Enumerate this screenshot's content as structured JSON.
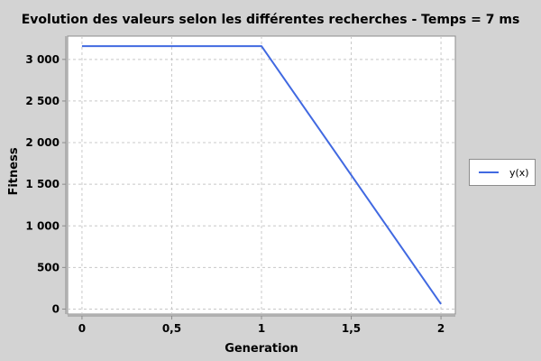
{
  "chart_data": {
    "type": "line",
    "title": "Evolution des valeurs selon les différentes recherches - Temps = 7 ms",
    "xlabel": "Generation",
    "ylabel": "Fitness",
    "xlim": [
      -0.08,
      2.08
    ],
    "ylim": [
      -60,
      3280
    ],
    "x_ticks": [
      {
        "value": 0,
        "label": "0"
      },
      {
        "value": 0.5,
        "label": "0,5"
      },
      {
        "value": 1,
        "label": "1"
      },
      {
        "value": 1.5,
        "label": "1,5"
      },
      {
        "value": 2,
        "label": "2"
      }
    ],
    "y_ticks": [
      {
        "value": 0,
        "label": "0"
      },
      {
        "value": 500,
        "label": "500"
      },
      {
        "value": 1000,
        "label": "1 000"
      },
      {
        "value": 1500,
        "label": "1 500"
      },
      {
        "value": 2000,
        "label": "2 000"
      },
      {
        "value": 2500,
        "label": "2 500"
      },
      {
        "value": 3000,
        "label": "3 000"
      }
    ],
    "grid": true,
    "legend_position": "right",
    "series": [
      {
        "name": "y(x)",
        "color": "#4169e1",
        "x": [
          0,
          1,
          2
        ],
        "y": [
          3160,
          3160,
          60
        ]
      }
    ]
  }
}
